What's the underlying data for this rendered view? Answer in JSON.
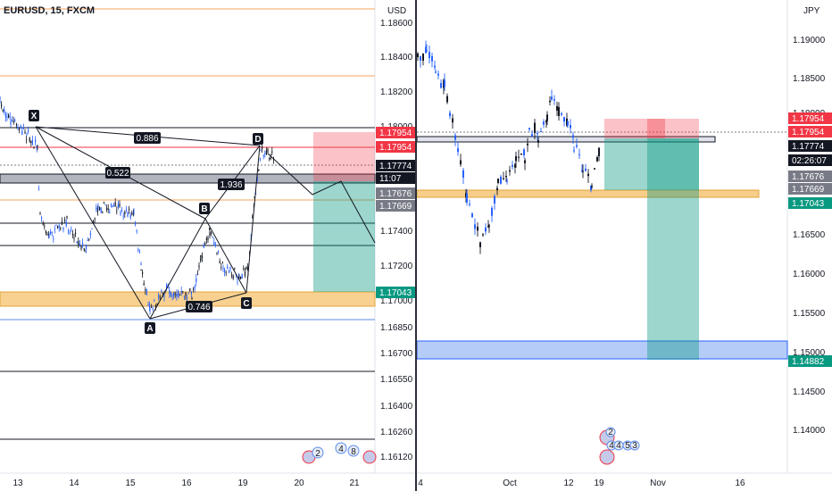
{
  "left": {
    "symbol": "EURUSD, 15, FXCM",
    "currency": "USD",
    "axis_prices": [
      "1.18600",
      "1.18400",
      "1.18200",
      "1.18000",
      "1.17800",
      "1.17400",
      "1.17200",
      "1.17000",
      "1.16850",
      "1.16700",
      "1.16550",
      "1.16400",
      "1.16260",
      "1.16120"
    ],
    "time_labels": [
      "13",
      "14",
      "15",
      "16",
      "19",
      "20",
      "21"
    ],
    "price_tags": [
      {
        "text": "1.17954",
        "bg": "#f23645",
        "fg": "#ffffff"
      },
      {
        "text": "1.17954",
        "bg": "#f23645",
        "fg": "#ffffff"
      },
      {
        "text": "1.17774",
        "bg": "#131722",
        "fg": "#ffffff"
      },
      {
        "text": "11:07",
        "bg": "#131722",
        "fg": "#ffffff"
      },
      {
        "text": "1.17676",
        "bg": "#787b86",
        "fg": "#ffffff"
      },
      {
        "text": "1.17669",
        "bg": "#787b86",
        "fg": "#ffffff"
      },
      {
        "text": "1.17043",
        "bg": "#089981",
        "fg": "#ffffff"
      }
    ],
    "pattern_points": [
      "X",
      "A",
      "B",
      "C",
      "D"
    ],
    "ratios": [
      "0.886",
      "0.522",
      "1.936",
      "0.746"
    ],
    "event_badges": [
      "2",
      "4",
      "8"
    ]
  },
  "right": {
    "currency": "JPY",
    "axis_prices": [
      "1.19000",
      "1.18500",
      "1.18000",
      "1.17500",
      "1.17000",
      "1.16500",
      "1.16000",
      "1.15500",
      "1.15000",
      "1.14500",
      "1.14000"
    ],
    "time_labels": [
      "4",
      "Oct",
      "12",
      "19",
      "Nov",
      "16"
    ],
    "price_tags": [
      {
        "text": "1.17954",
        "bg": "#f23645",
        "fg": "#ffffff"
      },
      {
        "text": "1.17954",
        "bg": "#f23645",
        "fg": "#ffffff"
      },
      {
        "text": "1.17774",
        "bg": "#131722",
        "fg": "#ffffff"
      },
      {
        "text": "02:26:07",
        "bg": "#131722",
        "fg": "#ffffff"
      },
      {
        "text": "1.17676",
        "bg": "#787b86",
        "fg": "#ffffff"
      },
      {
        "text": "1.17669",
        "bg": "#787b86",
        "fg": "#ffffff"
      },
      {
        "text": "1.17043",
        "bg": "#089981",
        "fg": "#ffffff"
      },
      {
        "text": "1.14882",
        "bg": "#089981",
        "fg": "#ffffff"
      }
    ],
    "event_badges": [
      "2",
      "4",
      "4",
      "5",
      "3"
    ]
  },
  "colors": {
    "up": "#2962ff",
    "down": "#131722",
    "zone_orange": "#f5c26b",
    "zone_blue": "#5b8def",
    "target": "#089981",
    "stop": "#f23645"
  }
}
